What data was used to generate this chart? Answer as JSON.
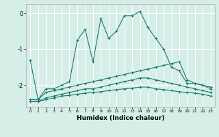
{
  "xlabel": "Humidex (Indice chaleur)",
  "ylabel": "",
  "background_color": "#d6eee8",
  "grid_color": "#ffffff",
  "line_color": "#1a7a6e",
  "xlim": [
    -0.5,
    23.5
  ],
  "ylim": [
    -2.6,
    0.25
  ],
  "yticks": [
    0,
    -1,
    -2
  ],
  "xticks": [
    0,
    1,
    2,
    3,
    4,
    5,
    6,
    7,
    8,
    9,
    10,
    11,
    12,
    13,
    14,
    15,
    16,
    17,
    18,
    19,
    20,
    21,
    22,
    23
  ],
  "series": [
    {
      "x": [
        0,
        1,
        2,
        3,
        4,
        5,
        6,
        7,
        8,
        9,
        10,
        11,
        12,
        13,
        14,
        15,
        16,
        17,
        18,
        19,
        20,
        21,
        22,
        23
      ],
      "y": [
        -1.3,
        -2.4,
        -2.1,
        -2.1,
        -2.0,
        -1.9,
        -0.75,
        -0.45,
        -1.35,
        -0.15,
        -0.7,
        -0.5,
        -0.07,
        -0.07,
        0.05,
        -0.4,
        -0.7,
        -1.0,
        -1.5,
        -1.6,
        -1.95,
        -1.95,
        -2.0,
        -2.1
      ]
    },
    {
      "x": [
        0,
        1,
        2,
        3,
        4,
        5,
        6,
        7,
        8,
        9,
        10,
        11,
        12,
        13,
        14,
        15,
        16,
        17,
        18,
        19,
        20,
        21,
        22,
        23
      ],
      "y": [
        -2.4,
        -2.4,
        -2.2,
        -2.15,
        -2.1,
        -2.05,
        -2.0,
        -1.95,
        -1.9,
        -1.85,
        -1.8,
        -1.75,
        -1.7,
        -1.65,
        -1.6,
        -1.55,
        -1.5,
        -1.45,
        -1.4,
        -1.35,
        -1.85,
        -1.95,
        -2.0,
        -2.05
      ]
    },
    {
      "x": [
        0,
        1,
        2,
        3,
        4,
        5,
        6,
        7,
        8,
        9,
        10,
        11,
        12,
        13,
        14,
        15,
        16,
        17,
        18,
        19,
        20,
        21,
        22,
        23
      ],
      "y": [
        -2.45,
        -2.45,
        -2.35,
        -2.3,
        -2.25,
        -2.2,
        -2.15,
        -2.1,
        -2.1,
        -2.05,
        -2.0,
        -1.95,
        -1.9,
        -1.85,
        -1.8,
        -1.8,
        -1.85,
        -1.9,
        -1.95,
        -2.0,
        -2.05,
        -2.1,
        -2.15,
        -2.2
      ]
    },
    {
      "x": [
        0,
        1,
        2,
        3,
        4,
        5,
        6,
        7,
        8,
        9,
        10,
        11,
        12,
        13,
        14,
        15,
        16,
        17,
        18,
        19,
        20,
        21,
        22,
        23
      ],
      "y": [
        -2.45,
        -2.45,
        -2.4,
        -2.35,
        -2.3,
        -2.28,
        -2.25,
        -2.22,
        -2.2,
        -2.18,
        -2.15,
        -2.12,
        -2.1,
        -2.08,
        -2.05,
        -2.05,
        -2.1,
        -2.12,
        -2.15,
        -2.18,
        -2.2,
        -2.22,
        -2.25,
        -2.3
      ]
    }
  ]
}
